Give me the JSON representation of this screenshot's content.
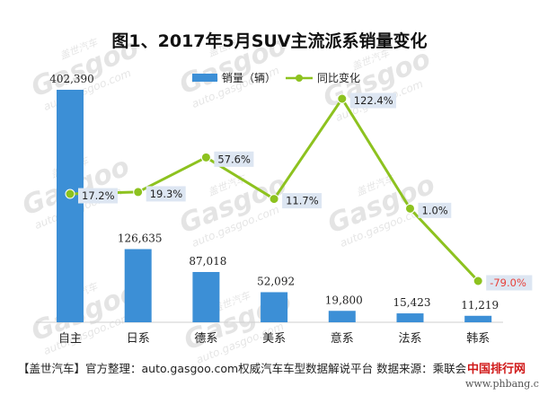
{
  "footer": {
    "source_text": "【盖世汽车】官方整理：auto.gasgoo.com权威汽车车型数据解说平台 数据来源：乘联会",
    "badge": "中国排行网",
    "url": "www.phbang.cn"
  },
  "watermark": {
    "brand": "盖世汽车",
    "logo": "Gasgoo",
    "site": "auto.gasgoo.com"
  },
  "colors": {
    "bar": "#3c8fd6",
    "line": "#8dc21f",
    "label_box": "#dde6f2",
    "negative_label": "#e8413a"
  },
  "chart_data": {
    "type": "bar+line",
    "title": "图1、2017年5月SUV主流派系销量变化",
    "categories": [
      "自主",
      "日系",
      "德系",
      "美系",
      "意系",
      "法系",
      "韩系"
    ],
    "series": [
      {
        "name": "销量（辆）",
        "type": "bar",
        "axis": "left",
        "values": [
          402390,
          126635,
          87018,
          52092,
          19800,
          15423,
          11219
        ],
        "labels": [
          "402,390",
          "126,635",
          "87,018",
          "52,092",
          "19,800",
          "15,423",
          "11,219"
        ]
      },
      {
        "name": "同比变化",
        "type": "line",
        "axis": "right",
        "values": [
          17.2,
          19.3,
          57.6,
          11.7,
          122.4,
          1.0,
          -79.0
        ],
        "labels": [
          "17.2%",
          "19.3%",
          "57.6%",
          "11.7%",
          "122.4%",
          "1.0%",
          "-79.0%"
        ]
      }
    ],
    "bar_axis_range": [
      0,
      420000
    ],
    "line_axis_range": [
      -120,
      140
    ],
    "legend_position": "top-center",
    "grid": false
  }
}
